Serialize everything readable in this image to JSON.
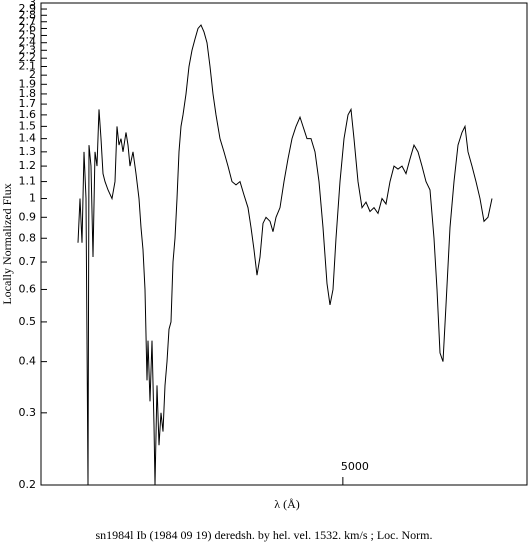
{
  "chart_data": {
    "type": "line",
    "caption": "sn1984l Ib (1984 09 19) deredsh. by hel. vel.  1532. km/s ;  Loc. Norm.",
    "x_label": "λ (Å)",
    "y_label": "Locally Normalized Flux",
    "log_y": true,
    "xlim": [
      3943.5,
      5644.5
    ],
    "xticks": [
      5000
    ],
    "ylim": [
      0.2,
      3
    ],
    "yticks": [
      0.2,
      0.3,
      0.4,
      0.5,
      0.6,
      0.7,
      0.8,
      0.9,
      1,
      1.1,
      1.2,
      1.3,
      1.4,
      1.5,
      1.6,
      1.7,
      1.8,
      1.9,
      2,
      2.1,
      2.2,
      2.3,
      2.4,
      2.5,
      2.6,
      2.7,
      2.8,
      2.9,
      3
    ],
    "color": "#000000",
    "x": [
      4073,
      4080,
      4087,
      4094,
      4101,
      4108,
      4111.5,
      4118.5,
      4125.5,
      4132.5,
      4139.5,
      4146.5,
      4153.5,
      4160.5,
      4167.5,
      4178,
      4192,
      4202.5,
      4209.5,
      4216.5,
      4223.5,
      4230.5,
      4241,
      4248,
      4255,
      4265.5,
      4276,
      4286.5,
      4293.5,
      4300.5,
      4307.5,
      4314.5,
      4318,
      4325,
      4332,
      4339,
      4342.5,
      4349.5,
      4356.5,
      4363.5,
      4370.5,
      4377.5,
      4384.5,
      4391.5,
      4398.5,
      4405.5,
      4412.5,
      4419.5,
      4426.5,
      4433.5,
      4440.5,
      4451,
      4461.5,
      4472,
      4482.5,
      4493,
      4503.5,
      4514,
      4524.5,
      4535,
      4545.5,
      4556,
      4570,
      4584,
      4598,
      4612,
      4626,
      4640,
      4654,
      4668,
      4678.5,
      4689,
      4699.5,
      4710,
      4720.5,
      4731,
      4745,
      4755.5,
      4766,
      4780,
      4794,
      4808,
      4822,
      4836,
      4850,
      4860.5,
      4874.5,
      4888.5,
      4902.5,
      4916.5,
      4930.5,
      4944.5,
      4955,
      4965.5,
      4976,
      4990,
      5004,
      5018,
      5028.5,
      5039,
      5053,
      5067,
      5081,
      5095,
      5109,
      5123,
      5137,
      5151,
      5165,
      5179,
      5193,
      5207,
      5221,
      5235,
      5249,
      5263,
      5277,
      5291,
      5305,
      5319,
      5329.5,
      5340,
      5350.5,
      5361,
      5375,
      5389,
      5403,
      5417,
      5427.5,
      5438,
      5452,
      5466,
      5480,
      5494,
      5508,
      5522
    ],
    "values": [
      0.78,
      1.0,
      0.78,
      1.3,
      1.0,
      0.2,
      1.35,
      1.2,
      0.72,
      1.3,
      1.2,
      1.65,
      1.4,
      1.15,
      1.1,
      1.05,
      1.0,
      1.1,
      1.5,
      1.35,
      1.4,
      1.3,
      1.45,
      1.35,
      1.2,
      1.3,
      1.15,
      1.0,
      0.85,
      0.75,
      0.6,
      0.36,
      0.45,
      0.32,
      0.45,
      0.28,
      0.2,
      0.35,
      0.25,
      0.3,
      0.27,
      0.35,
      0.4,
      0.48,
      0.5,
      0.7,
      0.8,
      1.0,
      1.3,
      1.5,
      1.6,
      1.8,
      2.1,
      2.3,
      2.45,
      2.6,
      2.65,
      2.55,
      2.4,
      2.1,
      1.8,
      1.6,
      1.4,
      1.3,
      1.2,
      1.1,
      1.08,
      1.1,
      1.02,
      0.95,
      0.85,
      0.75,
      0.65,
      0.72,
      0.87,
      0.9,
      0.88,
      0.83,
      0.9,
      0.95,
      1.1,
      1.25,
      1.4,
      1.5,
      1.58,
      1.5,
      1.4,
      1.4,
      1.3,
      1.1,
      0.85,
      0.62,
      0.55,
      0.6,
      0.8,
      1.1,
      1.4,
      1.6,
      1.65,
      1.4,
      1.1,
      0.95,
      0.98,
      0.93,
      0.95,
      0.92,
      1.0,
      0.97,
      1.1,
      1.2,
      1.18,
      1.2,
      1.15,
      1.25,
      1.35,
      1.3,
      1.2,
      1.1,
      1.05,
      0.8,
      0.6,
      0.42,
      0.4,
      0.55,
      0.85,
      1.1,
      1.35,
      1.45,
      1.5,
      1.3,
      1.2,
      1.1,
      1.0,
      0.88,
      0.9,
      1.0
    ]
  }
}
